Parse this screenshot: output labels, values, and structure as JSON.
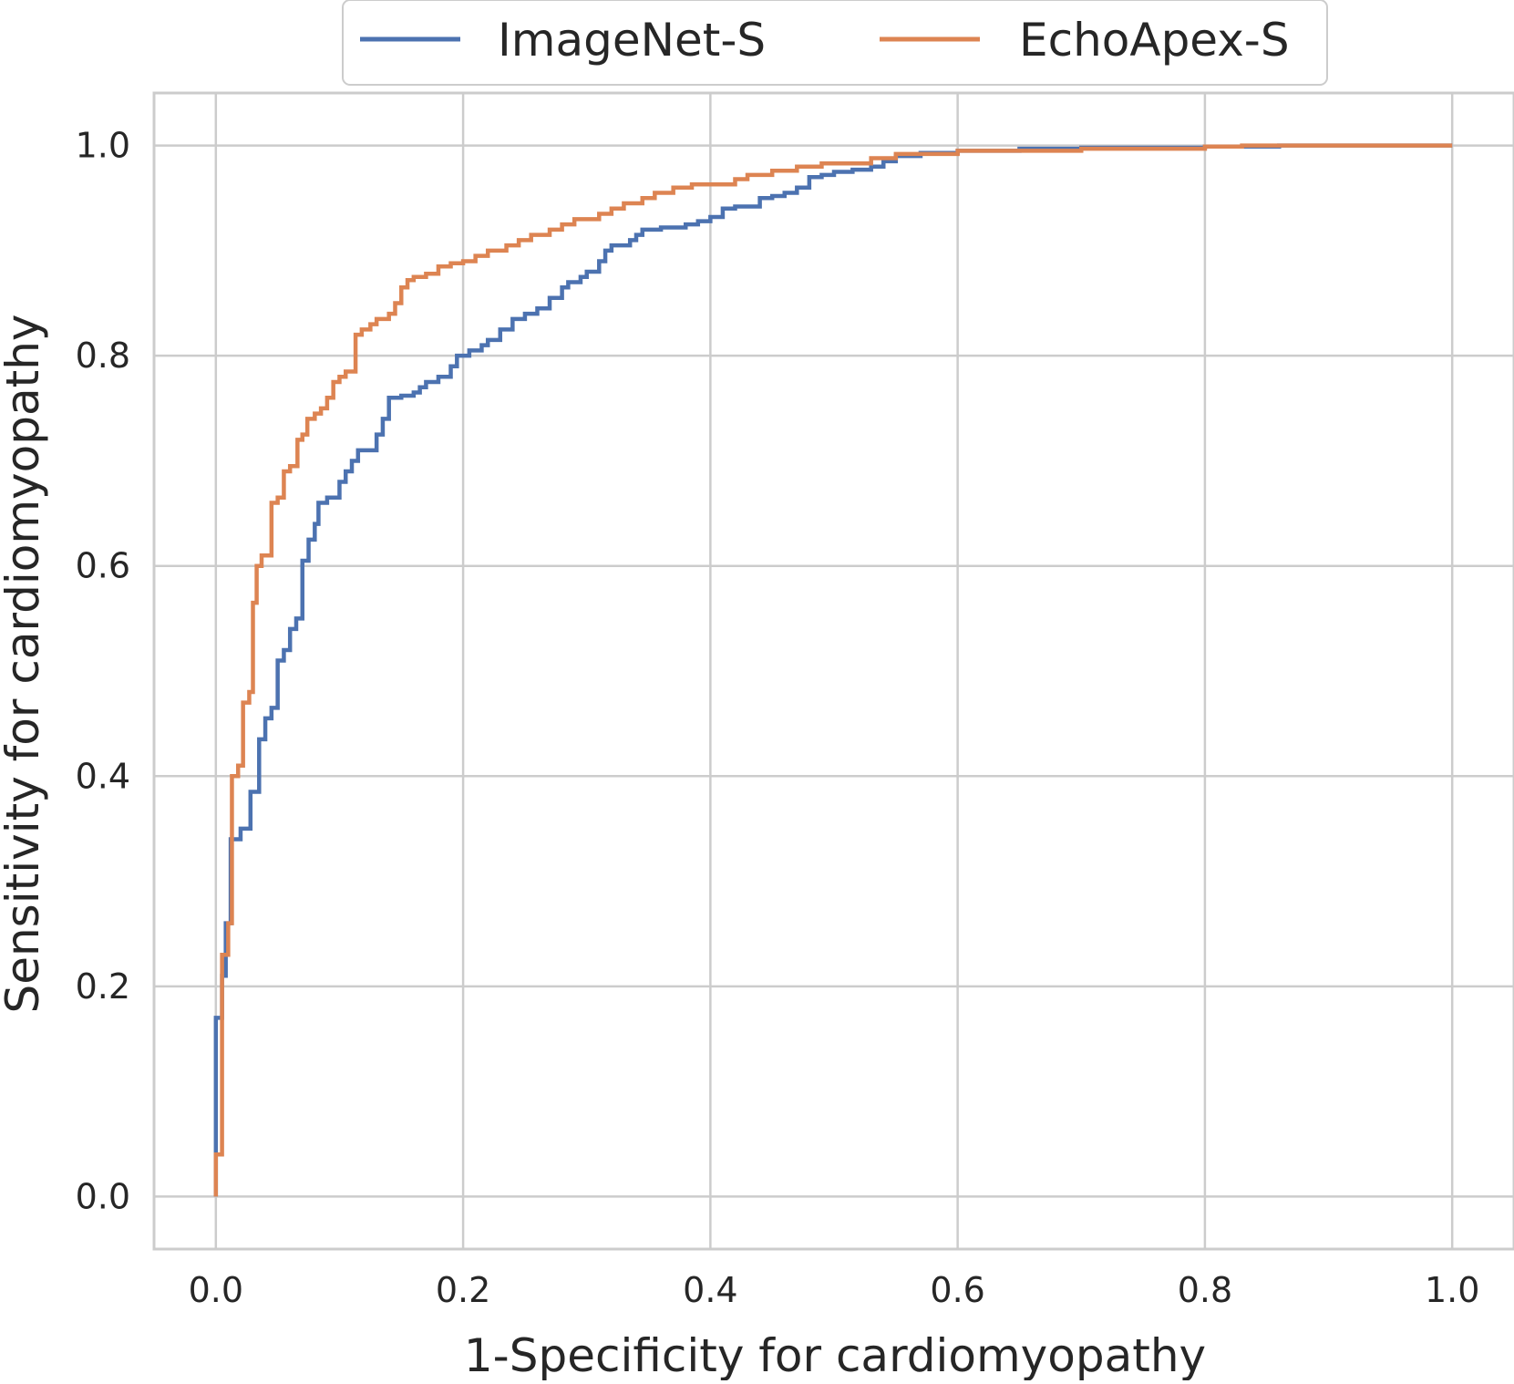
{
  "chart_data": {
    "type": "line",
    "title": "",
    "xlabel": "1-Specificity for cardiomyopathy",
    "ylabel": "Sensitivity for cardiomyopathy",
    "xlim": [
      -0.05,
      1.05
    ],
    "ylim": [
      -0.05,
      1.05
    ],
    "x_ticks": [
      "0.0",
      "0.2",
      "0.4",
      "0.6",
      "0.8",
      "1.0"
    ],
    "y_ticks": [
      "0.0",
      "0.2",
      "0.4",
      "0.6",
      "0.8",
      "1.0"
    ],
    "grid": true,
    "legend_position": "top-center",
    "series": [
      {
        "name": "ImageNet-S",
        "color": "#4c72b0",
        "step": true,
        "points": [
          [
            0.0,
            0.0
          ],
          [
            0.0,
            0.05
          ],
          [
            0.0,
            0.17
          ],
          [
            0.005,
            0.17
          ],
          [
            0.005,
            0.21
          ],
          [
            0.008,
            0.21
          ],
          [
            0.008,
            0.26
          ],
          [
            0.012,
            0.26
          ],
          [
            0.012,
            0.34
          ],
          [
            0.02,
            0.34
          ],
          [
            0.02,
            0.35
          ],
          [
            0.028,
            0.35
          ],
          [
            0.028,
            0.385
          ],
          [
            0.035,
            0.385
          ],
          [
            0.035,
            0.435
          ],
          [
            0.04,
            0.435
          ],
          [
            0.04,
            0.455
          ],
          [
            0.045,
            0.455
          ],
          [
            0.045,
            0.465
          ],
          [
            0.05,
            0.465
          ],
          [
            0.05,
            0.51
          ],
          [
            0.055,
            0.51
          ],
          [
            0.055,
            0.52
          ],
          [
            0.06,
            0.52
          ],
          [
            0.06,
            0.54
          ],
          [
            0.065,
            0.54
          ],
          [
            0.065,
            0.55
          ],
          [
            0.07,
            0.55
          ],
          [
            0.07,
            0.605
          ],
          [
            0.075,
            0.605
          ],
          [
            0.075,
            0.625
          ],
          [
            0.08,
            0.625
          ],
          [
            0.08,
            0.64
          ],
          [
            0.083,
            0.64
          ],
          [
            0.083,
            0.66
          ],
          [
            0.09,
            0.66
          ],
          [
            0.09,
            0.665
          ],
          [
            0.1,
            0.665
          ],
          [
            0.1,
            0.68
          ],
          [
            0.105,
            0.68
          ],
          [
            0.105,
            0.69
          ],
          [
            0.11,
            0.69
          ],
          [
            0.11,
            0.7
          ],
          [
            0.115,
            0.7
          ],
          [
            0.115,
            0.71
          ],
          [
            0.13,
            0.71
          ],
          [
            0.13,
            0.725
          ],
          [
            0.135,
            0.725
          ],
          [
            0.135,
            0.74
          ],
          [
            0.14,
            0.74
          ],
          [
            0.14,
            0.76
          ],
          [
            0.15,
            0.76
          ],
          [
            0.15,
            0.762
          ],
          [
            0.16,
            0.762
          ],
          [
            0.16,
            0.765
          ],
          [
            0.165,
            0.765
          ],
          [
            0.165,
            0.77
          ],
          [
            0.17,
            0.77
          ],
          [
            0.17,
            0.775
          ],
          [
            0.18,
            0.775
          ],
          [
            0.18,
            0.78
          ],
          [
            0.19,
            0.78
          ],
          [
            0.19,
            0.79
          ],
          [
            0.195,
            0.79
          ],
          [
            0.195,
            0.8
          ],
          [
            0.205,
            0.8
          ],
          [
            0.205,
            0.805
          ],
          [
            0.215,
            0.805
          ],
          [
            0.215,
            0.81
          ],
          [
            0.22,
            0.81
          ],
          [
            0.22,
            0.815
          ],
          [
            0.23,
            0.815
          ],
          [
            0.23,
            0.825
          ],
          [
            0.24,
            0.825
          ],
          [
            0.24,
            0.835
          ],
          [
            0.25,
            0.835
          ],
          [
            0.25,
            0.84
          ],
          [
            0.26,
            0.84
          ],
          [
            0.26,
            0.845
          ],
          [
            0.27,
            0.845
          ],
          [
            0.27,
            0.855
          ],
          [
            0.28,
            0.855
          ],
          [
            0.28,
            0.865
          ],
          [
            0.285,
            0.865
          ],
          [
            0.285,
            0.87
          ],
          [
            0.295,
            0.87
          ],
          [
            0.295,
            0.875
          ],
          [
            0.3,
            0.875
          ],
          [
            0.3,
            0.88
          ],
          [
            0.31,
            0.88
          ],
          [
            0.31,
            0.89
          ],
          [
            0.315,
            0.89
          ],
          [
            0.315,
            0.9
          ],
          [
            0.32,
            0.9
          ],
          [
            0.32,
            0.905
          ],
          [
            0.335,
            0.905
          ],
          [
            0.335,
            0.91
          ],
          [
            0.34,
            0.91
          ],
          [
            0.34,
            0.915
          ],
          [
            0.345,
            0.915
          ],
          [
            0.345,
            0.92
          ],
          [
            0.36,
            0.92
          ],
          [
            0.36,
            0.922
          ],
          [
            0.38,
            0.922
          ],
          [
            0.38,
            0.925
          ],
          [
            0.39,
            0.925
          ],
          [
            0.39,
            0.928
          ],
          [
            0.4,
            0.928
          ],
          [
            0.4,
            0.932
          ],
          [
            0.41,
            0.932
          ],
          [
            0.41,
            0.94
          ],
          [
            0.42,
            0.94
          ],
          [
            0.42,
            0.942
          ],
          [
            0.44,
            0.942
          ],
          [
            0.44,
            0.95
          ],
          [
            0.45,
            0.95
          ],
          [
            0.45,
            0.952
          ],
          [
            0.46,
            0.952
          ],
          [
            0.46,
            0.955
          ],
          [
            0.47,
            0.955
          ],
          [
            0.47,
            0.96
          ],
          [
            0.48,
            0.96
          ],
          [
            0.48,
            0.97
          ],
          [
            0.49,
            0.97
          ],
          [
            0.49,
            0.972
          ],
          [
            0.5,
            0.972
          ],
          [
            0.5,
            0.975
          ],
          [
            0.515,
            0.975
          ],
          [
            0.515,
            0.977
          ],
          [
            0.53,
            0.977
          ],
          [
            0.53,
            0.98
          ],
          [
            0.54,
            0.98
          ],
          [
            0.54,
            0.985
          ],
          [
            0.55,
            0.985
          ],
          [
            0.55,
            0.99
          ],
          [
            0.57,
            0.99
          ],
          [
            0.57,
            0.993
          ],
          [
            0.6,
            0.993
          ],
          [
            0.6,
            0.995
          ],
          [
            0.65,
            0.995
          ],
          [
            0.65,
            0.997
          ],
          [
            0.7,
            0.997
          ],
          [
            0.7,
            0.998
          ],
          [
            0.8,
            0.998
          ],
          [
            0.8,
            0.999
          ],
          [
            0.86,
            0.999
          ],
          [
            0.86,
            1.0
          ],
          [
            1.0,
            1.0
          ]
        ]
      },
      {
        "name": "EchoApex-S",
        "color": "#dd8452",
        "step": true,
        "points": [
          [
            0.0,
            0.0
          ],
          [
            0.0,
            0.04
          ],
          [
            0.005,
            0.04
          ],
          [
            0.005,
            0.23
          ],
          [
            0.01,
            0.23
          ],
          [
            0.01,
            0.26
          ],
          [
            0.013,
            0.26
          ],
          [
            0.013,
            0.4
          ],
          [
            0.018,
            0.4
          ],
          [
            0.018,
            0.41
          ],
          [
            0.022,
            0.41
          ],
          [
            0.022,
            0.47
          ],
          [
            0.027,
            0.47
          ],
          [
            0.027,
            0.48
          ],
          [
            0.03,
            0.48
          ],
          [
            0.03,
            0.565
          ],
          [
            0.033,
            0.565
          ],
          [
            0.033,
            0.6
          ],
          [
            0.037,
            0.6
          ],
          [
            0.037,
            0.61
          ],
          [
            0.045,
            0.61
          ],
          [
            0.045,
            0.66
          ],
          [
            0.05,
            0.66
          ],
          [
            0.05,
            0.665
          ],
          [
            0.055,
            0.665
          ],
          [
            0.055,
            0.69
          ],
          [
            0.06,
            0.69
          ],
          [
            0.06,
            0.695
          ],
          [
            0.066,
            0.695
          ],
          [
            0.066,
            0.72
          ],
          [
            0.07,
            0.72
          ],
          [
            0.07,
            0.725
          ],
          [
            0.074,
            0.725
          ],
          [
            0.074,
            0.74
          ],
          [
            0.08,
            0.74
          ],
          [
            0.08,
            0.745
          ],
          [
            0.085,
            0.745
          ],
          [
            0.085,
            0.75
          ],
          [
            0.09,
            0.75
          ],
          [
            0.09,
            0.76
          ],
          [
            0.095,
            0.76
          ],
          [
            0.095,
            0.775
          ],
          [
            0.1,
            0.775
          ],
          [
            0.1,
            0.78
          ],
          [
            0.105,
            0.78
          ],
          [
            0.105,
            0.785
          ],
          [
            0.113,
            0.785
          ],
          [
            0.113,
            0.82
          ],
          [
            0.118,
            0.82
          ],
          [
            0.118,
            0.825
          ],
          [
            0.125,
            0.825
          ],
          [
            0.125,
            0.83
          ],
          [
            0.13,
            0.83
          ],
          [
            0.13,
            0.835
          ],
          [
            0.14,
            0.835
          ],
          [
            0.14,
            0.84
          ],
          [
            0.145,
            0.84
          ],
          [
            0.145,
            0.85
          ],
          [
            0.15,
            0.85
          ],
          [
            0.15,
            0.865
          ],
          [
            0.155,
            0.865
          ],
          [
            0.155,
            0.872
          ],
          [
            0.16,
            0.872
          ],
          [
            0.16,
            0.875
          ],
          [
            0.17,
            0.875
          ],
          [
            0.17,
            0.878
          ],
          [
            0.18,
            0.878
          ],
          [
            0.18,
            0.885
          ],
          [
            0.19,
            0.885
          ],
          [
            0.19,
            0.888
          ],
          [
            0.2,
            0.888
          ],
          [
            0.2,
            0.89
          ],
          [
            0.21,
            0.89
          ],
          [
            0.21,
            0.895
          ],
          [
            0.22,
            0.895
          ],
          [
            0.22,
            0.9
          ],
          [
            0.235,
            0.9
          ],
          [
            0.235,
            0.905
          ],
          [
            0.245,
            0.905
          ],
          [
            0.245,
            0.91
          ],
          [
            0.255,
            0.91
          ],
          [
            0.255,
            0.915
          ],
          [
            0.27,
            0.915
          ],
          [
            0.27,
            0.92
          ],
          [
            0.28,
            0.92
          ],
          [
            0.28,
            0.925
          ],
          [
            0.29,
            0.925
          ],
          [
            0.29,
            0.93
          ],
          [
            0.31,
            0.93
          ],
          [
            0.31,
            0.935
          ],
          [
            0.32,
            0.935
          ],
          [
            0.32,
            0.94
          ],
          [
            0.33,
            0.94
          ],
          [
            0.33,
            0.945
          ],
          [
            0.345,
            0.945
          ],
          [
            0.345,
            0.95
          ],
          [
            0.355,
            0.95
          ],
          [
            0.355,
            0.955
          ],
          [
            0.37,
            0.955
          ],
          [
            0.37,
            0.96
          ],
          [
            0.385,
            0.96
          ],
          [
            0.385,
            0.963
          ],
          [
            0.42,
            0.963
          ],
          [
            0.42,
            0.968
          ],
          [
            0.43,
            0.968
          ],
          [
            0.43,
            0.972
          ],
          [
            0.45,
            0.972
          ],
          [
            0.45,
            0.976
          ],
          [
            0.47,
            0.976
          ],
          [
            0.47,
            0.98
          ],
          [
            0.49,
            0.98
          ],
          [
            0.49,
            0.983
          ],
          [
            0.53,
            0.983
          ],
          [
            0.53,
            0.988
          ],
          [
            0.55,
            0.988
          ],
          [
            0.55,
            0.992
          ],
          [
            0.6,
            0.992
          ],
          [
            0.6,
            0.995
          ],
          [
            0.7,
            0.995
          ],
          [
            0.7,
            0.997
          ],
          [
            0.8,
            0.997
          ],
          [
            0.8,
            0.999
          ],
          [
            0.83,
            0.999
          ],
          [
            0.83,
            1.0
          ],
          [
            1.0,
            1.0
          ]
        ]
      }
    ]
  }
}
